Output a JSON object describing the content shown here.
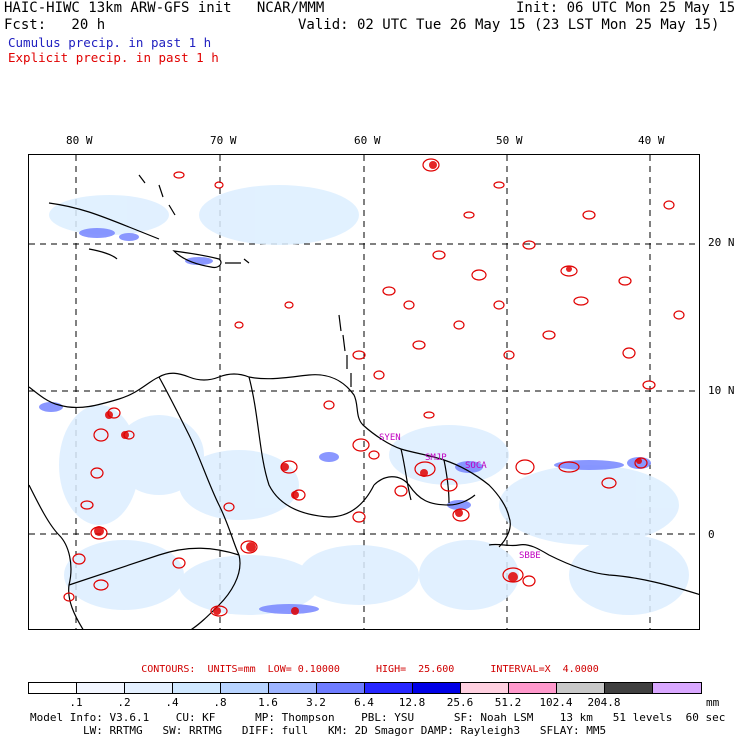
{
  "header": {
    "title": "HAIC-HIWC 13km ARW-GFS init   NCAR/MMM",
    "init": "Init: 06 UTC Mon 25 May 15",
    "fcst": "Fcst:   20 h",
    "valid": "Valid: 02 UTC Tue 26 May 15 (23 LST Mon 25 May 15)",
    "legend_cumulus": "Cumulus precip. in past 1 h",
    "legend_explicit": "Explicit precip. in past 1 h"
  },
  "colors": {
    "cumulus_text": "#2020c0",
    "explicit_text": "#e00000",
    "explicit_contour": "#e00000",
    "coastline": "#000000",
    "grid": "#000000"
  },
  "map": {
    "lon_labels": [
      "80 W",
      "70 W",
      "60 W",
      "50 W",
      "40 W"
    ],
    "lat_labels": [
      "20 N",
      "10 N",
      "0"
    ],
    "station_labels": [
      "SYEN",
      "SMJP",
      "SOCA",
      "SBBE"
    ],
    "station_color": "#c000c0"
  },
  "contours": {
    "text": "CONTOURS:  UNITS=mm  LOW= 0.10000      HIGH=  25.600      INTERVAL=X  4.0000"
  },
  "colorbar": {
    "ticks": [
      ".1",
      ".2",
      ".4",
      ".8",
      "1.6",
      "3.2",
      "6.4",
      "12.8",
      "25.6",
      "51.2",
      "102.4",
      "204.8"
    ],
    "unit": "mm",
    "colors": [
      "#ffffff",
      "#f2f6ff",
      "#e4f0ff",
      "#d0e8ff",
      "#b8d4ff",
      "#9db4ff",
      "#6e7cff",
      "#2626ff",
      "#0000e6",
      "#ffd0e0",
      "#ff99cc",
      "#c8c8c8",
      "#404040",
      "#d9a8ff"
    ]
  },
  "model_info": {
    "line1": "Model Info: V3.6.1    CU: KF      MP: Thompson    PBL: YSU      SF: Noah LSM    13 km   51 levels  60 sec",
    "line2": "        LW: RRTMG   SW: RRTMG   DIFF: full   KM: 2D Smagor DAMP: Rayleigh3   SFLAY: MM5"
  }
}
